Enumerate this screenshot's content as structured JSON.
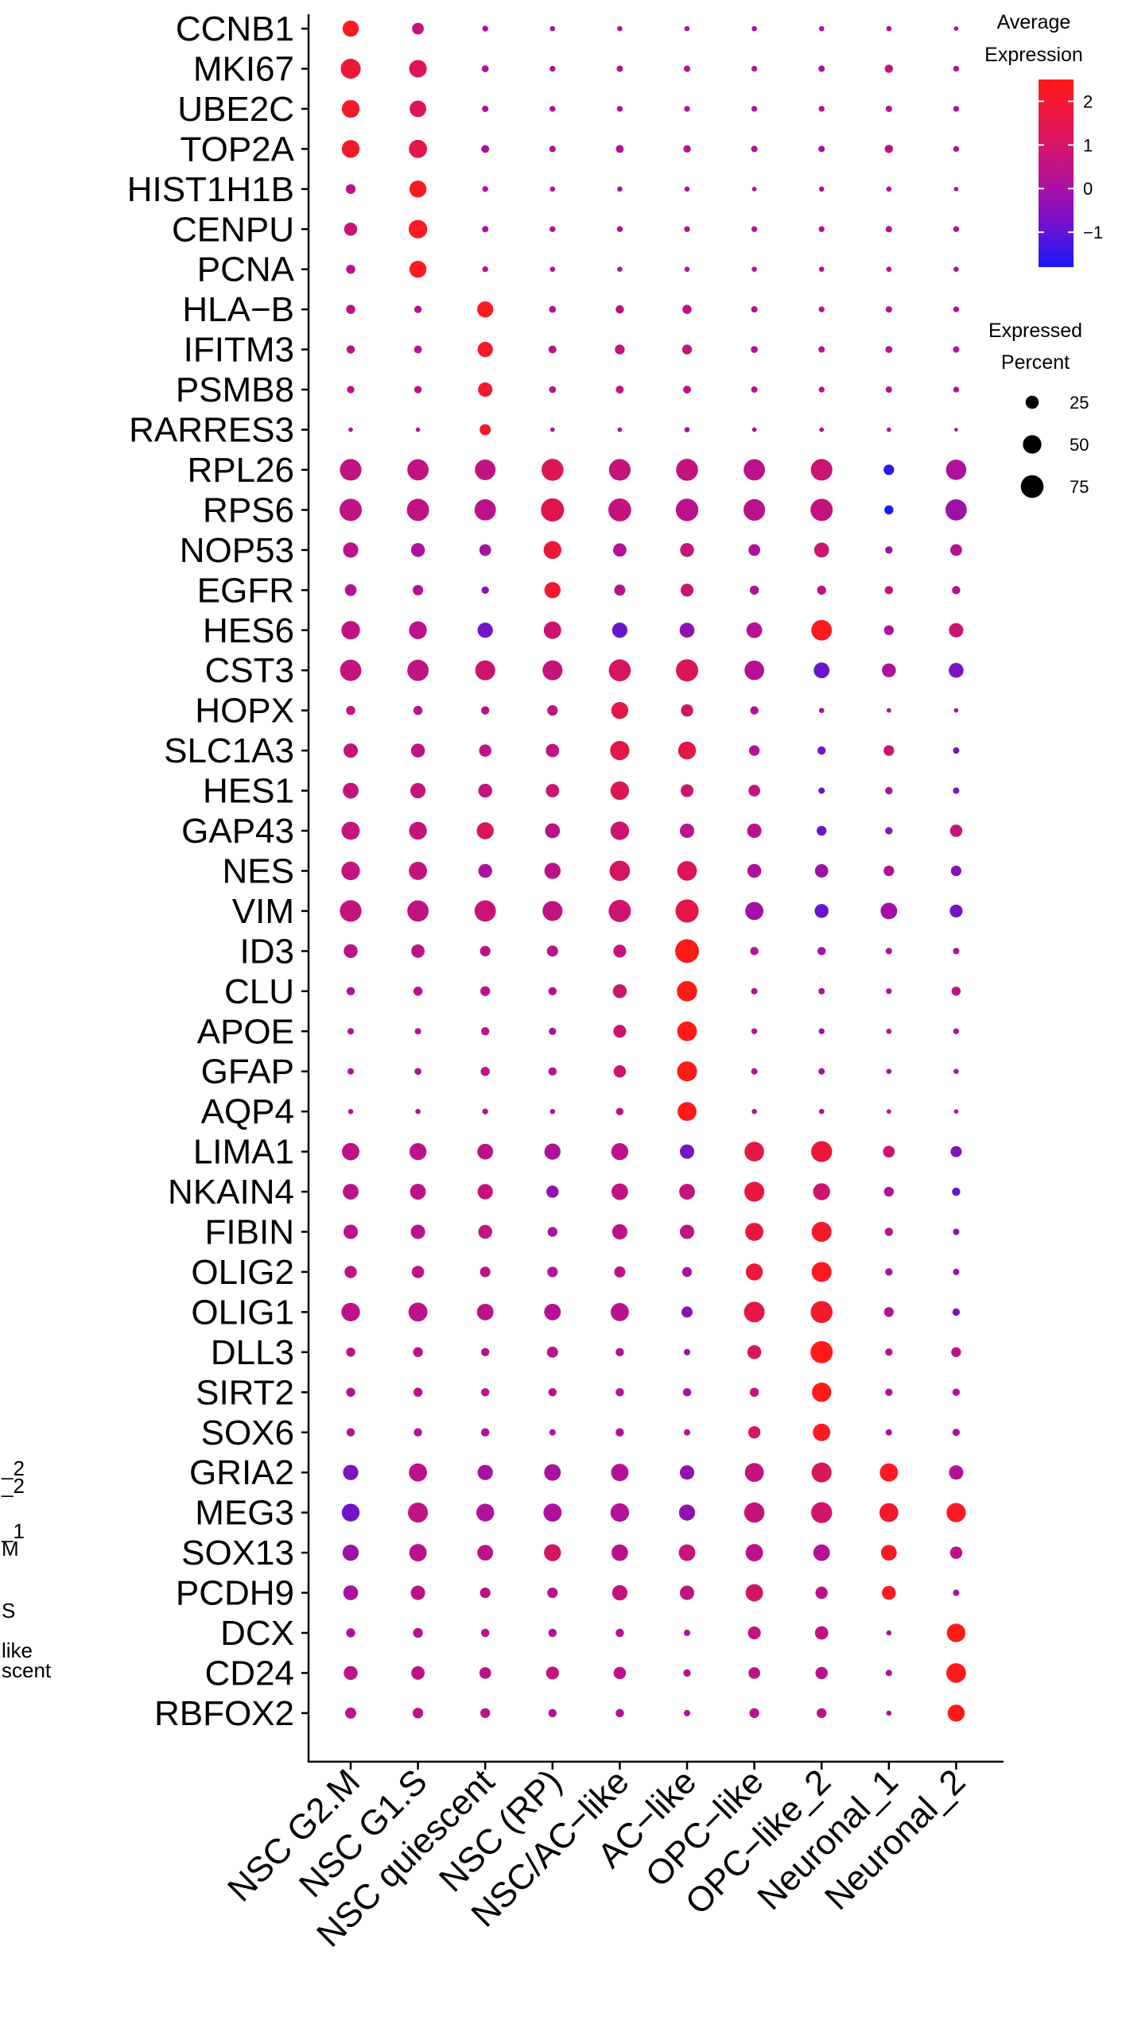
{
  "chart_data": {
    "type": "dotplot",
    "clusters": [
      "NSC G2.M",
      "NSC G1.S",
      "NSC quiescent",
      "NSC (RP)",
      "NSC/AC−like",
      "AC−like",
      "OPC−like",
      "OPC−like_2",
      "Neuronal_1",
      "Neuronal_2"
    ],
    "genes": [
      "CCNB1",
      "MKI67",
      "UBE2C",
      "TOP2A",
      "HIST1H1B",
      "CENPU",
      "PCNA",
      "HLA−B",
      "IFITM3",
      "PSMB8",
      "RARRES3",
      "RPL26",
      "RPS6",
      "NOP53",
      "EGFR",
      "HES6",
      "CST3",
      "HOPX",
      "SLC1A3",
      "HES1",
      "GAP43",
      "NES",
      "VIM",
      "ID3",
      "CLU",
      "APOE",
      "GFAP",
      "AQP4",
      "LIMA1",
      "NKAIN4",
      "FIBIN",
      "OLIG2",
      "OLIG1",
      "DLL3",
      "SIRT2",
      "SOX6",
      "GRIA2",
      "MEG3",
      "SOX13",
      "PCDH9",
      "DCX",
      "CD24",
      "RBFOX2"
    ],
    "pct_expressed": [
      [
        38,
        20,
        5,
        4,
        4,
        4,
        4,
        4,
        4,
        3
      ],
      [
        58,
        45,
        7,
        5,
        6,
        6,
        5,
        6,
        10,
        5
      ],
      [
        46,
        40,
        6,
        5,
        5,
        5,
        5,
        5,
        6,
        5
      ],
      [
        46,
        48,
        9,
        6,
        9,
        8,
        6,
        6,
        10,
        5
      ],
      [
        14,
        42,
        5,
        4,
        4,
        4,
        3,
        4,
        4,
        3
      ],
      [
        25,
        50,
        6,
        5,
        5,
        5,
        5,
        5,
        6,
        5
      ],
      [
        12,
        42,
        5,
        4,
        4,
        4,
        4,
        4,
        4,
        4
      ],
      [
        12,
        8,
        38,
        7,
        10,
        12,
        6,
        5,
        6,
        5
      ],
      [
        10,
        9,
        34,
        9,
        14,
        14,
        7,
        6,
        7,
        6
      ],
      [
        8,
        8,
        30,
        7,
        9,
        9,
        6,
        5,
        6,
        5
      ],
      [
        3,
        3,
        18,
        3,
        3,
        4,
        3,
        3,
        3,
        2
      ],
      [
        68,
        66,
        62,
        70,
        68,
        70,
        66,
        68,
        16,
        60
      ],
      [
        72,
        72,
        66,
        78,
        76,
        74,
        68,
        72,
        12,
        66
      ],
      [
        34,
        28,
        20,
        46,
        26,
        28,
        20,
        32,
        8,
        20
      ],
      [
        20,
        16,
        8,
        38,
        18,
        24,
        12,
        12,
        10,
        10
      ],
      [
        50,
        46,
        34,
        44,
        34,
        32,
        36,
        62,
        14,
        30
      ],
      [
        66,
        66,
        58,
        58,
        70,
        72,
        56,
        36,
        28,
        32
      ],
      [
        12,
        12,
        10,
        16,
        42,
        22,
        10,
        4,
        3,
        3
      ],
      [
        30,
        28,
        22,
        26,
        54,
        46,
        16,
        10,
        16,
        6
      ],
      [
        36,
        34,
        28,
        26,
        50,
        24,
        20,
        6,
        8,
        6
      ],
      [
        48,
        46,
        42,
        32,
        50,
        30,
        30,
        14,
        8,
        22
      ],
      [
        50,
        48,
        28,
        38,
        60,
        56,
        28,
        26,
        16,
        16
      ],
      [
        68,
        66,
        66,
        58,
        72,
        78,
        48,
        28,
        40,
        24
      ],
      [
        28,
        26,
        16,
        18,
        24,
        82,
        10,
        10,
        6,
        6
      ],
      [
        10,
        12,
        14,
        10,
        28,
        60,
        6,
        6,
        5,
        12
      ],
      [
        6,
        6,
        10,
        8,
        24,
        56,
        5,
        5,
        4,
        5
      ],
      [
        6,
        7,
        12,
        10,
        22,
        58,
        6,
        6,
        4,
        4
      ],
      [
        4,
        4,
        5,
        4,
        8,
        52,
        4,
        4,
        3,
        3
      ],
      [
        44,
        42,
        36,
        38,
        42,
        30,
        56,
        64,
        20,
        18
      ],
      [
        36,
        36,
        34,
        22,
        40,
        36,
        58,
        42,
        14,
        10
      ],
      [
        30,
        30,
        28,
        14,
        34,
        30,
        48,
        58,
        10,
        6
      ],
      [
        22,
        22,
        16,
        16,
        18,
        14,
        42,
        58,
        8,
        6
      ],
      [
        50,
        52,
        40,
        40,
        48,
        18,
        62,
        70,
        14,
        8
      ],
      [
        12,
        14,
        10,
        18,
        10,
        6,
        28,
        72,
        8,
        14
      ],
      [
        12,
        12,
        10,
        10,
        10,
        10,
        12,
        54,
        8,
        8
      ],
      [
        10,
        10,
        10,
        6,
        10,
        6,
        22,
        44,
        6,
        8
      ],
      [
        34,
        48,
        34,
        40,
        44,
        30,
        52,
        58,
        48,
        30
      ],
      [
        46,
        58,
        46,
        48,
        50,
        38,
        60,
        64,
        52,
        54
      ],
      [
        38,
        44,
        36,
        42,
        40,
        40,
        44,
        40,
        36,
        22
      ],
      [
        32,
        30,
        16,
        16,
        34,
        30,
        44,
        22,
        28,
        6
      ],
      [
        12,
        14,
        10,
        10,
        10,
        6,
        24,
        26,
        4,
        50
      ],
      [
        28,
        26,
        20,
        24,
        22,
        8,
        20,
        22,
        6,
        56
      ],
      [
        18,
        16,
        14,
        10,
        10,
        6,
        14,
        14,
        4,
        42
      ]
    ],
    "avg_expression": [
      [
        2.4,
        1.0,
        0.5,
        0.5,
        0.5,
        0.5,
        0.5,
        0.5,
        0.5,
        0.5
      ],
      [
        2.0,
        1.6,
        0.6,
        0.6,
        0.6,
        0.6,
        0.6,
        0.6,
        1.0,
        0.6
      ],
      [
        2.2,
        1.6,
        0.6,
        0.6,
        0.6,
        0.6,
        0.6,
        0.6,
        0.6,
        0.6
      ],
      [
        2.2,
        1.8,
        0.6,
        0.6,
        0.6,
        0.6,
        0.6,
        0.6,
        0.8,
        0.6
      ],
      [
        0.8,
        2.4,
        0.5,
        0.5,
        0.5,
        0.5,
        0.5,
        0.5,
        0.5,
        0.5
      ],
      [
        1.2,
        2.4,
        0.6,
        0.6,
        0.6,
        0.6,
        0.6,
        0.6,
        0.6,
        0.6
      ],
      [
        0.8,
        2.4,
        0.6,
        0.6,
        0.6,
        0.6,
        0.6,
        0.6,
        0.6,
        0.6
      ],
      [
        0.8,
        0.6,
        2.4,
        0.6,
        0.8,
        0.8,
        0.6,
        0.6,
        0.6,
        0.6
      ],
      [
        0.8,
        0.8,
        2.2,
        0.8,
        1.0,
        1.0,
        0.6,
        0.6,
        0.6,
        0.6
      ],
      [
        0.8,
        0.8,
        2.2,
        0.8,
        0.8,
        0.8,
        0.6,
        0.6,
        0.6,
        0.6
      ],
      [
        0.6,
        0.6,
        2.2,
        0.6,
        0.6,
        0.6,
        0.6,
        0.6,
        0.6,
        0.6
      ],
      [
        0.9,
        0.9,
        0.9,
        1.6,
        1.0,
        1.0,
        0.8,
        1.1,
        -1.6,
        0.5
      ],
      [
        0.9,
        0.9,
        0.8,
        1.7,
        1.0,
        0.8,
        0.8,
        1.0,
        -1.8,
        0.2
      ],
      [
        0.8,
        0.5,
        0.4,
        2.0,
        0.6,
        1.1,
        0.5,
        1.2,
        0.2,
        0.6
      ],
      [
        0.6,
        0.6,
        0.0,
        2.2,
        0.8,
        1.2,
        0.5,
        0.8,
        1.0,
        0.6
      ],
      [
        0.9,
        0.8,
        -0.5,
        1.2,
        -0.6,
        0.0,
        0.6,
        2.4,
        0.5,
        1.2
      ],
      [
        1.0,
        0.9,
        1.2,
        1.0,
        1.4,
        1.5,
        0.6,
        -0.6,
        0.5,
        -0.4
      ],
      [
        0.9,
        0.8,
        0.8,
        1.0,
        1.8,
        1.3,
        0.6,
        0.4,
        0.4,
        0.4
      ],
      [
        1.0,
        0.9,
        0.9,
        0.9,
        1.8,
        1.8,
        0.6,
        -0.4,
        1.2,
        -0.4
      ],
      [
        1.0,
        1.0,
        1.0,
        1.2,
        1.6,
        1.2,
        0.9,
        -0.5,
        0.6,
        -0.4
      ],
      [
        1.0,
        1.0,
        1.5,
        0.8,
        1.2,
        0.8,
        0.8,
        -0.6,
        0.0,
        1.0
      ],
      [
        1.0,
        1.0,
        0.4,
        0.8,
        1.4,
        1.6,
        0.5,
        0.2,
        0.6,
        -0.2
      ],
      [
        1.0,
        0.9,
        1.1,
        0.9,
        1.2,
        1.8,
        0.3,
        -0.7,
        0.3,
        -0.5
      ],
      [
        0.8,
        0.8,
        0.8,
        0.8,
        1.0,
        2.5,
        0.6,
        0.4,
        0.6,
        0.6
      ],
      [
        0.6,
        0.6,
        0.8,
        0.6,
        1.2,
        2.5,
        0.6,
        0.4,
        0.6,
        1.0
      ],
      [
        0.6,
        0.6,
        0.8,
        0.6,
        1.2,
        2.5,
        0.6,
        0.4,
        0.6,
        0.6
      ],
      [
        0.6,
        0.6,
        0.8,
        0.6,
        1.2,
        2.5,
        0.6,
        0.4,
        0.6,
        0.6
      ],
      [
        0.6,
        0.6,
        0.6,
        0.6,
        0.8,
        2.5,
        0.6,
        0.4,
        0.6,
        0.6
      ],
      [
        0.8,
        0.8,
        0.8,
        0.5,
        0.8,
        -0.4,
        1.8,
        2.0,
        1.2,
        -0.2
      ],
      [
        0.8,
        0.8,
        1.0,
        0.0,
        0.9,
        1.0,
        1.9,
        1.2,
        0.6,
        -0.6
      ],
      [
        0.8,
        0.8,
        1.0,
        0.4,
        0.8,
        0.9,
        1.9,
        2.2,
        0.8,
        -0.2
      ],
      [
        0.8,
        0.8,
        0.8,
        0.6,
        0.8,
        0.4,
        2.0,
        2.4,
        0.6,
        0.2
      ],
      [
        0.8,
        0.8,
        0.8,
        0.6,
        0.7,
        -0.2,
        1.8,
        2.2,
        0.6,
        -0.3
      ],
      [
        0.8,
        0.8,
        0.8,
        0.8,
        0.6,
        0.2,
        1.6,
        2.5,
        0.8,
        0.8
      ],
      [
        0.8,
        0.8,
        0.8,
        0.8,
        0.6,
        0.6,
        1.0,
        2.5,
        0.6,
        0.6
      ],
      [
        0.6,
        0.6,
        0.6,
        0.6,
        0.6,
        0.6,
        1.4,
        2.4,
        0.6,
        0.6
      ],
      [
        -0.3,
        0.8,
        0.4,
        0.4,
        0.6,
        0.0,
        1.0,
        1.5,
        2.4,
        0.6
      ],
      [
        -0.5,
        0.9,
        0.5,
        0.5,
        0.6,
        0.0,
        1.0,
        1.3,
        2.2,
        2.4
      ],
      [
        0.2,
        0.8,
        0.8,
        1.4,
        0.8,
        1.0,
        0.8,
        0.6,
        2.4,
        0.8
      ],
      [
        0.4,
        0.8,
        0.8,
        0.8,
        1.0,
        0.9,
        1.3,
        0.8,
        2.4,
        0.4
      ],
      [
        0.6,
        0.6,
        0.6,
        0.6,
        0.6,
        0.6,
        1.0,
        1.0,
        0.6,
        2.5
      ],
      [
        0.8,
        0.8,
        0.8,
        1.0,
        0.8,
        0.6,
        0.8,
        0.8,
        0.6,
        2.5
      ],
      [
        0.8,
        0.8,
        0.8,
        0.6,
        0.6,
        0.6,
        0.8,
        0.8,
        0.6,
        2.5
      ]
    ],
    "color_scale": {
      "low": "#1a1aff",
      "mid": "#b0119c",
      "high": "#ff1a1a",
      "min": -1.8,
      "max": 2.5
    },
    "legend": {
      "color_title": [
        "Average",
        "Expression"
      ],
      "color_ticks": [
        2,
        1,
        0,
        -1
      ],
      "color_tick_labels": [
        "2",
        "1",
        "0",
        "−1"
      ],
      "size_title": [
        "Expressed",
        "Percent"
      ],
      "size_ticks": [
        25,
        50,
        75
      ],
      "size_tick_labels": [
        "25",
        "50",
        "75"
      ],
      "placement": "right"
    },
    "xlabel": "",
    "ylabel": "",
    "grid": false,
    "partial_text_left": [
      "_2",
      "_2",
      "_1",
      "M",
      "S",
      "like",
      "scent"
    ]
  }
}
